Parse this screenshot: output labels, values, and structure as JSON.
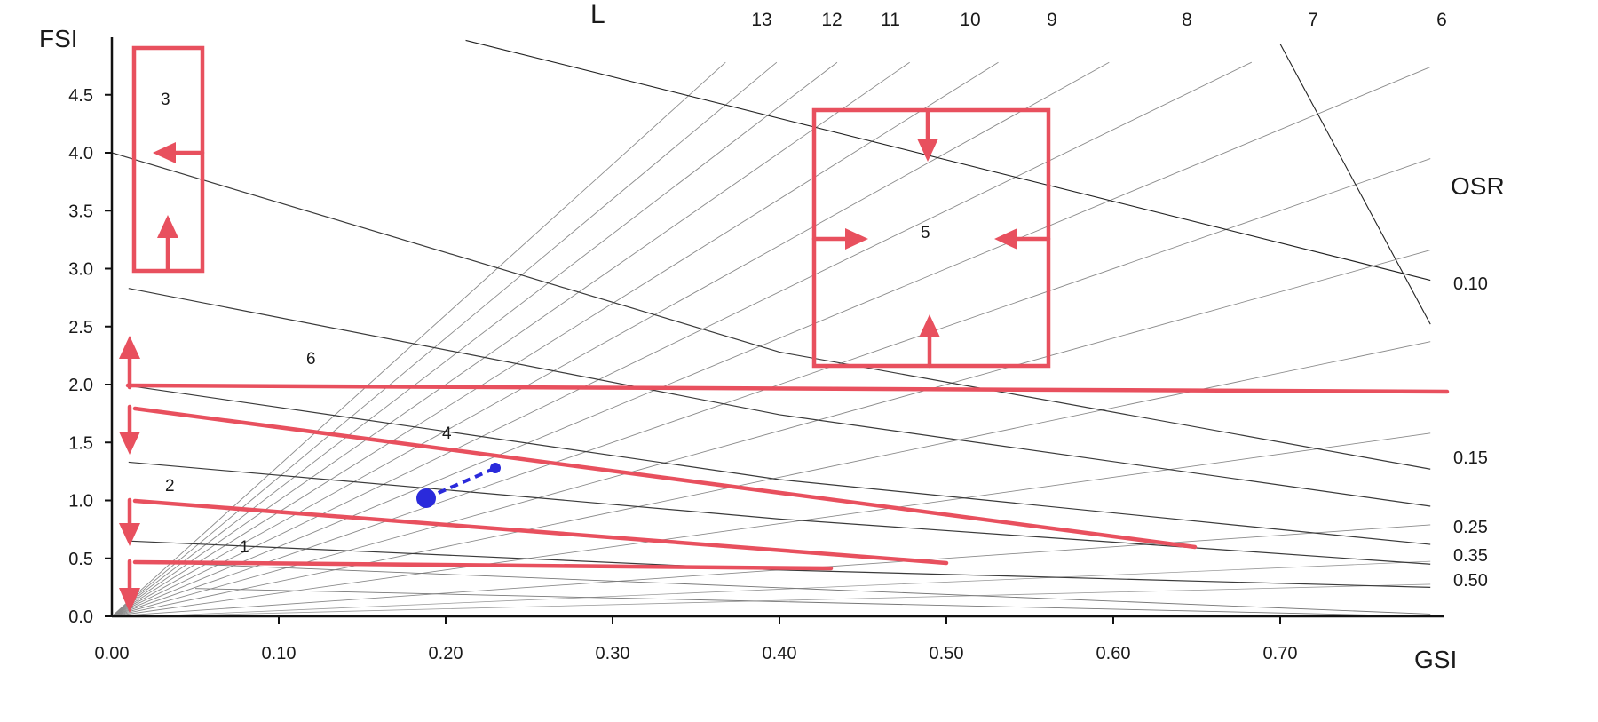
{
  "chart_data": {
    "type": "line",
    "title": "",
    "xlabel": "GSI",
    "ylabel": "FSI",
    "xlim": [
      0,
      0.8
    ],
    "ylim": [
      0,
      4.5
    ],
    "x_ticks": [
      "0.00",
      "0.10",
      "0.20",
      "0.30",
      "0.40",
      "0.50",
      "0.60",
      "0.70"
    ],
    "y_ticks": [
      "0.0",
      "0.5",
      "1.0",
      "1.5",
      "2.0",
      "2.5",
      "3.0",
      "3.5",
      "4.0",
      "4.5"
    ],
    "grid": false,
    "layer_axis_label": "L",
    "layer_labels": [
      "13",
      "12",
      "11",
      "10",
      "9",
      "8",
      "7",
      "6"
    ],
    "osr_axis_label": "OSR",
    "osr_labels": [
      "0.10",
      "0.15",
      "0.25",
      "0.35",
      "0.50"
    ],
    "osr_curves": [
      {
        "osr": "0.10",
        "points": [
          [
            0.0,
            4.0
          ],
          [
            0.4,
            2.28
          ],
          [
            0.79,
            1.27
          ]
        ]
      },
      {
        "osr": "0.15",
        "points": [
          [
            0.01,
            2.83
          ],
          [
            0.4,
            1.74
          ],
          [
            0.79,
            0.95
          ]
        ]
      },
      {
        "osr": "0.25",
        "points": [
          [
            0.01,
            1.99
          ],
          [
            0.4,
            1.18
          ],
          [
            0.79,
            0.62
          ]
        ]
      },
      {
        "osr": "0.35",
        "points": [
          [
            0.01,
            1.33
          ],
          [
            0.4,
            0.84
          ],
          [
            0.79,
            0.45
          ]
        ]
      },
      {
        "osr": "0.50",
        "points": [
          [
            0.01,
            0.65
          ],
          [
            0.4,
            0.4
          ],
          [
            0.79,
            0.25
          ]
        ]
      }
    ],
    "zones": [
      "1",
      "2",
      "3",
      "4",
      "5",
      "6"
    ],
    "colors": {
      "zones": "#e8505e",
      "point": "#2a2adb",
      "axis": "#111111",
      "lines": "#555555"
    }
  }
}
